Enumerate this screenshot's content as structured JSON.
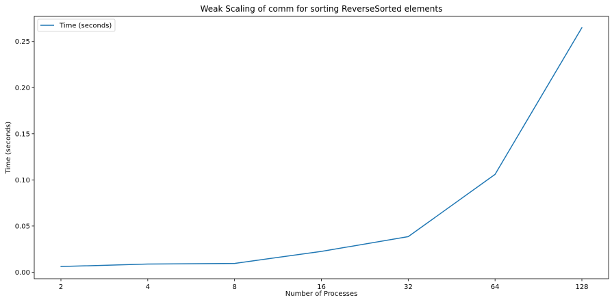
{
  "chart_data": {
    "type": "line",
    "title": "Weak Scaling of comm for sorting ReverseSorted elements",
    "xlabel": "Number of Processes",
    "ylabel": "Time (seconds)",
    "categories": [
      "2",
      "4",
      "8",
      "16",
      "32",
      "64",
      "128"
    ],
    "x_scale": "log2",
    "ylim": [
      -0.0071,
      0.2772
    ],
    "yticks": [
      "0.00",
      "0.05",
      "0.10",
      "0.15",
      "0.20",
      "0.25"
    ],
    "grid": false,
    "legend_position": "top-left",
    "series": [
      {
        "name": "Time (seconds)",
        "color": "#1f77b4",
        "values": [
          0.0061,
          0.0088,
          0.0095,
          0.0225,
          0.0385,
          0.106,
          0.265
        ]
      }
    ]
  }
}
